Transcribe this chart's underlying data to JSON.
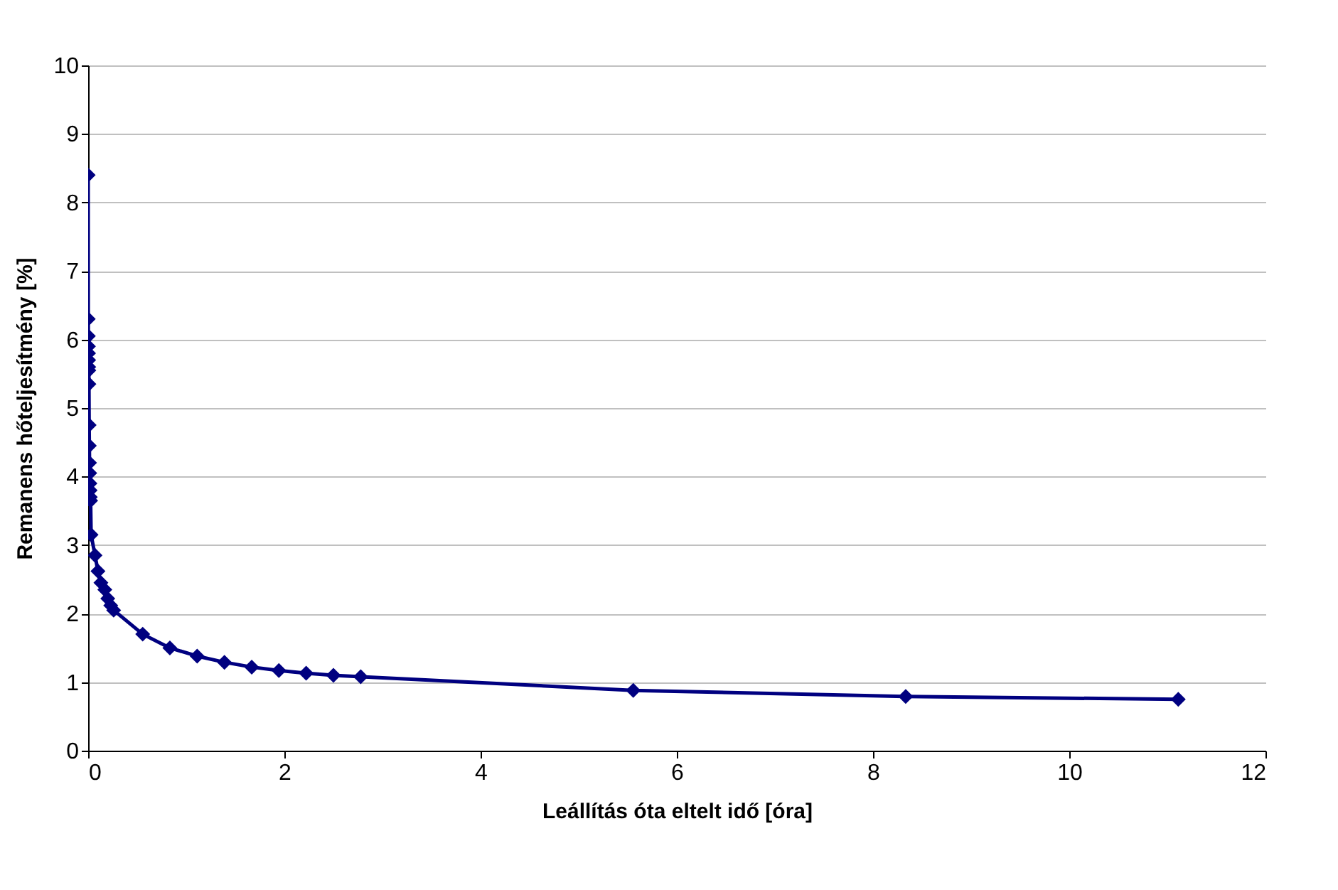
{
  "chart_data": {
    "type": "line",
    "xlabel": "Leállítás óta eltelt idő [óra]",
    "ylabel": "Remanens hőteljesítmény [%]",
    "x": [
      0,
      0.001,
      0.002,
      0.003,
      0.004,
      0.005,
      0.006,
      0.007,
      0.008,
      0.01,
      0.012,
      0.014,
      0.016,
      0.018,
      0.02,
      0.022,
      0.025,
      0.03,
      0.07,
      0.1,
      0.13,
      0.17,
      0.2,
      0.23,
      0.26,
      0.556,
      0.833,
      1.111,
      1.389,
      1.667,
      1.944,
      2.222,
      2.5,
      2.778,
      5.556,
      8.333,
      11.111
    ],
    "series": [
      {
        "color": "#000080",
        "values": [
          8.4,
          6.3,
          6.05,
          5.9,
          5.8,
          5.7,
          5.6,
          5.55,
          5.35,
          4.75,
          4.45,
          4.2,
          4.05,
          3.9,
          3.8,
          3.7,
          3.65,
          3.15,
          2.85,
          2.62,
          2.45,
          2.35,
          2.22,
          2.12,
          2.05,
          1.7,
          1.5,
          1.38,
          1.29,
          1.22,
          1.17,
          1.13,
          1.1,
          1.08,
          0.88,
          0.79,
          0.75
        ]
      }
    ],
    "xlim": [
      0,
      12
    ],
    "xticks": [
      0,
      2,
      4,
      6,
      8,
      10,
      12
    ],
    "ylim": [
      0,
      10
    ],
    "yticks": [
      0,
      1,
      2,
      3,
      4,
      5,
      6,
      7,
      8,
      9,
      10
    ],
    "grid": "y",
    "marker": "diamond",
    "line_style": "solid",
    "legend": false
  }
}
